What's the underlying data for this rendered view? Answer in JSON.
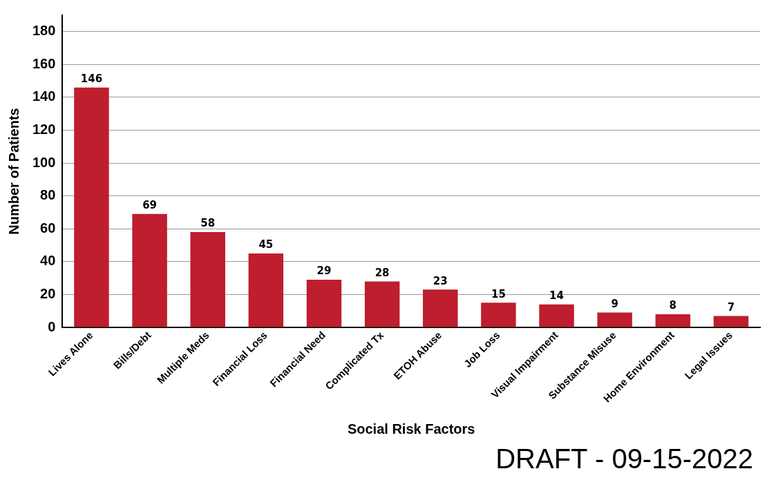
{
  "chart_data": {
    "type": "bar",
    "xlabel": "Social Risk Factors",
    "ylabel": "Number of Patients",
    "categories": [
      "Lives Alone",
      "Bills/Debt",
      "Multiple Meds",
      "Financial Loss",
      "Financial Need",
      "Complicated Tx",
      "ETOH Abuse",
      "Job Loss",
      "Visual Impairment",
      "Substance Misuse",
      "Home Environment",
      "Legal Issues"
    ],
    "values": [
      146,
      69,
      58,
      45,
      29,
      28,
      23,
      15,
      14,
      9,
      8,
      7
    ],
    "color": "#be1e2d",
    "ylim": [
      0,
      190
    ],
    "yticks": [
      0,
      20,
      40,
      60,
      80,
      100,
      120,
      140,
      160,
      180
    ],
    "grid": "y",
    "legend": false,
    "data_labels": true,
    "annotations": [
      "DRAFT - 09-15-2022"
    ]
  }
}
